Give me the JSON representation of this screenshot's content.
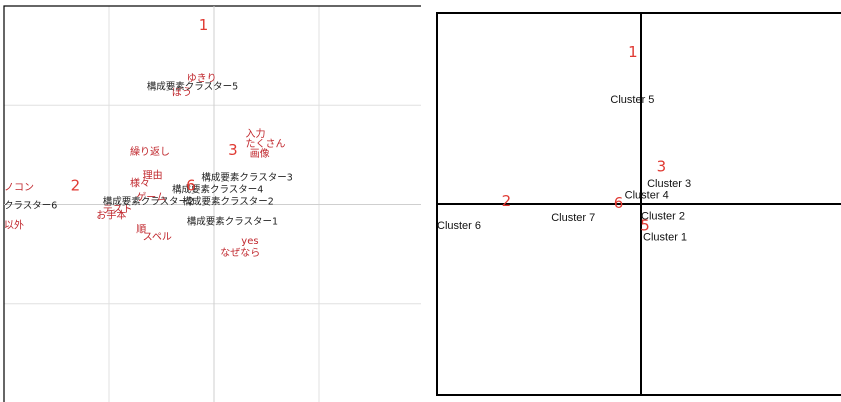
{
  "colors": {
    "red": "#c0272d",
    "red_number": "#e03a33",
    "black": "#222222",
    "grid": "#e0e0e0",
    "frame": "#000000"
  },
  "chart_data": [
    {
      "type": "scatter",
      "grid": true,
      "xlim": [
        -1,
        1
      ],
      "ylim": [
        -1,
        1
      ],
      "cluster_numbers": [
        {
          "text": "1",
          "x": -0.05,
          "y": 0.88
        },
        {
          "text": "2",
          "x": -0.66,
          "y": 0.07
        },
        {
          "text": "3",
          "x": 0.09,
          "y": 0.25
        },
        {
          "text": "6",
          "x": -0.11,
          "y": 0.07
        }
      ],
      "cluster_labels": [
        {
          "text": "構成要素クラスター5",
          "x": -0.32,
          "y": 0.58
        },
        {
          "text": "クラスター6",
          "x": -1.0,
          "y": -0.02
        },
        {
          "text": "構成要素クラスター3",
          "x": -0.06,
          "y": 0.12
        },
        {
          "text": "構成要素クラスター4",
          "x": -0.2,
          "y": 0.06
        },
        {
          "text": "構成要素クラスター2",
          "x": -0.53,
          "y": 0.0
        },
        {
          "text": "構成要素クラスター2",
          "x": -0.15,
          "y": 0.0
        },
        {
          "text": "構成要素クラスター1",
          "x": -0.13,
          "y": -0.1
        }
      ],
      "word_labels": [
        {
          "text": "ゆきり",
          "x": -0.13,
          "y": 0.62
        },
        {
          "text": "ぼう",
          "x": -0.2,
          "y": 0.55
        },
        {
          "text": "入力",
          "x": 0.15,
          "y": 0.34
        },
        {
          "text": "たくさん",
          "x": 0.15,
          "y": 0.29
        },
        {
          "text": "画像",
          "x": 0.17,
          "y": 0.24
        },
        {
          "text": "繰り返し",
          "x": -0.4,
          "y": 0.25
        },
        {
          "text": "理由",
          "x": -0.34,
          "y": 0.13
        },
        {
          "text": "様々",
          "x": -0.4,
          "y": 0.09
        },
        {
          "text": "ゲーム",
          "x": -0.37,
          "y": 0.02
        },
        {
          "text": "テスト",
          "x": -0.53,
          "y": -0.04
        },
        {
          "text": "お手本",
          "x": -0.56,
          "y": -0.07
        },
        {
          "text": "順",
          "x": -0.37,
          "y": -0.14
        },
        {
          "text": "スペル",
          "x": -0.34,
          "y": -0.18
        },
        {
          "text": "ノコン",
          "x": -1.0,
          "y": 0.07
        },
        {
          "text": "以外",
          "x": -1.0,
          "y": -0.12
        },
        {
          "text": "yes",
          "x": 0.13,
          "y": -0.2
        },
        {
          "text": "なぜなら",
          "x": 0.03,
          "y": -0.26
        }
      ]
    },
    {
      "type": "scatter",
      "grid": false,
      "xlim": [
        -1,
        1
      ],
      "ylim": [
        -1,
        1
      ],
      "cluster_numbers": [
        {
          "text": "1",
          "x": -0.04,
          "y": 0.77
        },
        {
          "text": "2",
          "x": -0.66,
          "y": -0.01
        },
        {
          "text": "3",
          "x": 0.1,
          "y": 0.17
        },
        {
          "text": "6",
          "x": -0.11,
          "y": -0.02
        },
        {
          "text": "5",
          "x": 0.02,
          "y": -0.14
        }
      ],
      "cluster_labels": [
        {
          "text": "Cluster 5",
          "x": -0.15,
          "y": 0.53
        },
        {
          "text": "Cluster 3",
          "x": 0.03,
          "y": 0.09
        },
        {
          "text": "Cluster 4",
          "x": -0.08,
          "y": 0.03
        },
        {
          "text": "Cluster 2",
          "x": 0.0,
          "y": -0.08
        },
        {
          "text": "Cluster 7",
          "x": -0.44,
          "y": -0.09
        },
        {
          "text": "Cluster 6",
          "x": -1.0,
          "y": -0.13
        },
        {
          "text": "Cluster 1",
          "x": 0.01,
          "y": -0.19
        }
      ]
    }
  ]
}
